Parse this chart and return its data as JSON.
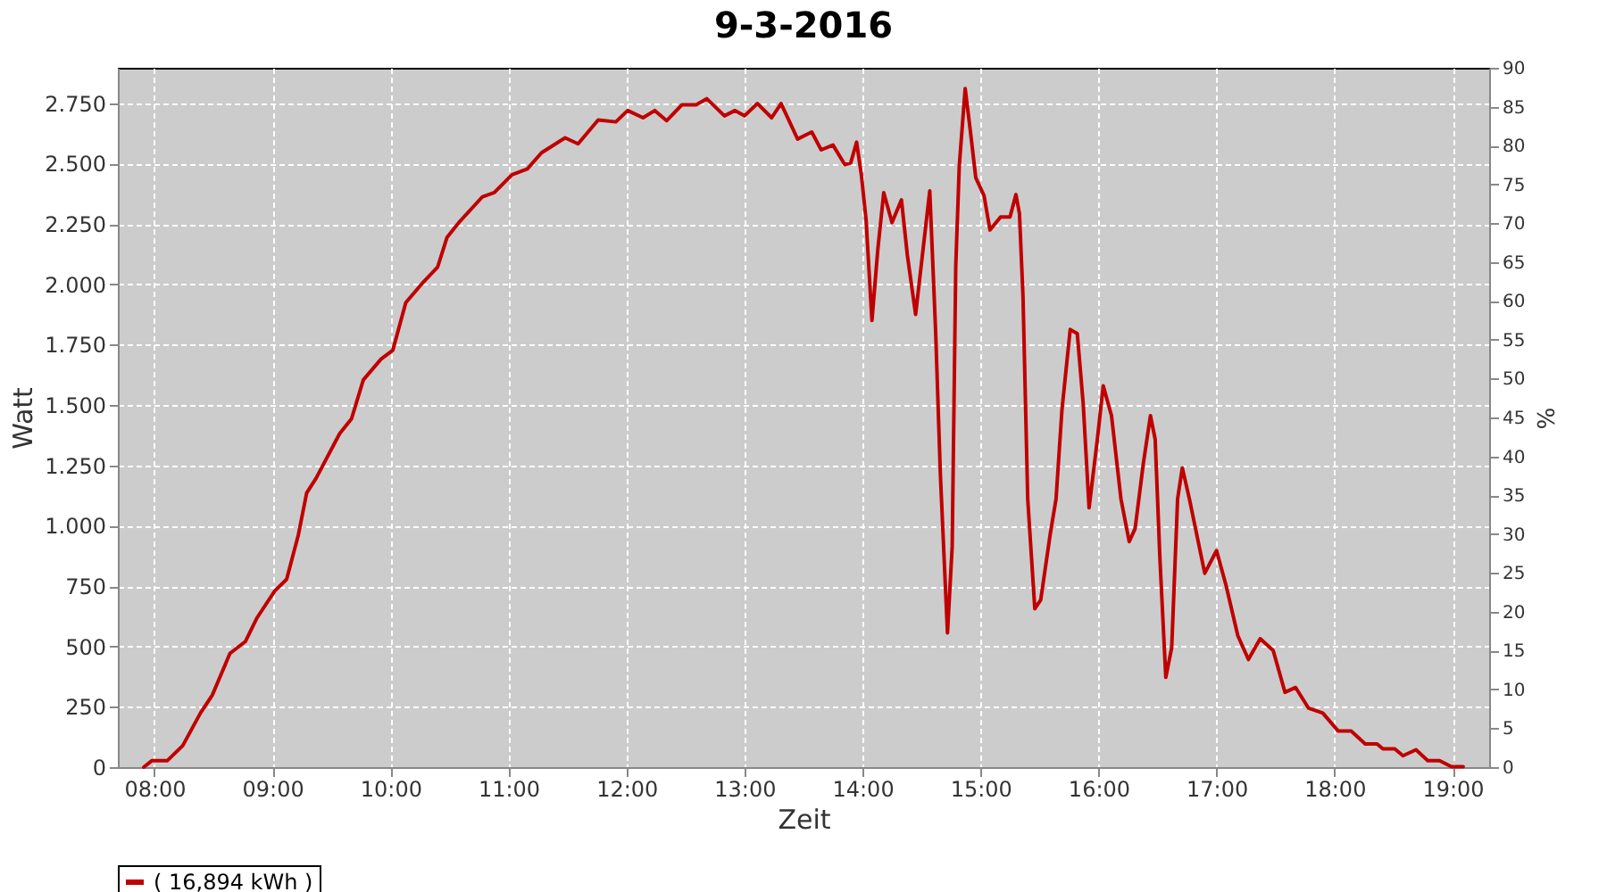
{
  "chart_data": {
    "type": "line",
    "title": "9-3-2016",
    "xlabel": "Zeit",
    "ylabel": "Watt",
    "y2label": "%",
    "xlim": [
      7.69,
      19.31
    ],
    "ylim": [
      0,
      2897
    ],
    "y2lim": [
      0,
      90
    ],
    "xticks": [
      {
        "value": 8,
        "label": "08:00"
      },
      {
        "value": 9,
        "label": "09:00"
      },
      {
        "value": 10,
        "label": "10:00"
      },
      {
        "value": 11,
        "label": "11:00"
      },
      {
        "value": 12,
        "label": "12:00"
      },
      {
        "value": 13,
        "label": "13:00"
      },
      {
        "value": 14,
        "label": "14:00"
      },
      {
        "value": 15,
        "label": "15:00"
      },
      {
        "value": 16,
        "label": "16:00"
      },
      {
        "value": 17,
        "label": "17:00"
      },
      {
        "value": 18,
        "label": "18:00"
      },
      {
        "value": 19,
        "label": "19:00"
      }
    ],
    "yticks": [
      0,
      250,
      500,
      750,
      {
        "value": 1000,
        "label": "1.000"
      },
      {
        "value": 1250,
        "label": "1.250"
      },
      {
        "value": 1500,
        "label": "1.500"
      },
      {
        "value": 1750,
        "label": "1.750"
      },
      {
        "value": 2000,
        "label": "2.000"
      },
      {
        "value": 2250,
        "label": "2.250"
      },
      {
        "value": 2500,
        "label": "2.500"
      },
      {
        "value": 2750,
        "label": "2.750"
      }
    ],
    "y2ticks": [
      0,
      5,
      10,
      15,
      20,
      25,
      30,
      35,
      40,
      45,
      50,
      55,
      60,
      65,
      70,
      75,
      80,
      85,
      90
    ],
    "grid": true,
    "legend": "bottom",
    "line_style": "solid",
    "series": [
      {
        "name": "( 16,894 kWh )",
        "color": "#c00000",
        "x": [
          7.91,
          7.98,
          8.11,
          8.24,
          8.39,
          8.49,
          8.64,
          8.77,
          8.87,
          9.02,
          9.12,
          9.22,
          9.29,
          9.37,
          9.57,
          9.67,
          9.77,
          9.92,
          10.02,
          10.13,
          10.28,
          10.4,
          10.48,
          10.58,
          10.78,
          10.88,
          11.03,
          11.16,
          11.28,
          11.48,
          11.59,
          11.76,
          11.91,
          12.01,
          12.14,
          12.24,
          12.34,
          12.47,
          12.59,
          12.68,
          12.83,
          12.92,
          13.0,
          13.11,
          13.23,
          13.31,
          13.45,
          13.57,
          13.65,
          13.75,
          13.85,
          13.9,
          13.95,
          13.99,
          14.03,
          14.08,
          14.13,
          14.18,
          14.25,
          14.33,
          14.38,
          14.45,
          14.53,
          14.57,
          14.62,
          14.66,
          14.72,
          14.76,
          14.79,
          14.82,
          14.87,
          14.91,
          14.96,
          15.03,
          15.08,
          15.17,
          15.25,
          15.3,
          15.33,
          15.36,
          15.4,
          15.46,
          15.51,
          15.59,
          15.64,
          15.69,
          15.76,
          15.82,
          15.87,
          15.92,
          15.99,
          16.04,
          16.11,
          16.19,
          16.26,
          16.31,
          16.38,
          16.44,
          16.48,
          16.52,
          16.57,
          16.62,
          16.67,
          16.71,
          16.77,
          16.9,
          17.0,
          17.08,
          17.18,
          17.27,
          17.37,
          17.48,
          17.58,
          17.67,
          17.78,
          17.9,
          18.03,
          18.14,
          18.26,
          18.36,
          18.41,
          18.51,
          18.58,
          18.69,
          18.79,
          18.89,
          18.99,
          19.09
        ],
        "values": [
          0,
          27,
          27,
          89,
          224,
          298,
          471,
          520,
          619,
          730,
          778,
          963,
          1136,
          1197,
          1382,
          1443,
          1604,
          1690,
          1727,
          1924,
          2010,
          2072,
          2195,
          2256,
          2363,
          2380,
          2454,
          2478,
          2545,
          2607,
          2582,
          2681,
          2673,
          2720,
          2690,
          2720,
          2678,
          2744,
          2744,
          2769,
          2698,
          2720,
          2698,
          2749,
          2690,
          2749,
          2602,
          2631,
          2557,
          2577,
          2496,
          2503,
          2589,
          2454,
          2269,
          1850,
          2146,
          2380,
          2256,
          2350,
          2121,
          1875,
          2217,
          2387,
          1801,
          1210,
          556,
          914,
          2072,
          2491,
          2811,
          2651,
          2441,
          2367,
          2225,
          2279,
          2279,
          2372,
          2293,
          1949,
          1111,
          656,
          692,
          963,
          1111,
          1480,
          1813,
          1796,
          1506,
          1074,
          1358,
          1580,
          1456,
          1111,
          934,
          988,
          1259,
          1456,
          1358,
          865,
          372,
          495,
          1111,
          1240,
          1111,
          803,
          897,
          754,
          545,
          446,
          532,
          483,
          310,
          330,
          244,
          224,
          150,
          150,
          96,
          96,
          76,
          76,
          47,
          72,
          27,
          27,
          2,
          2
        ]
      }
    ]
  }
}
